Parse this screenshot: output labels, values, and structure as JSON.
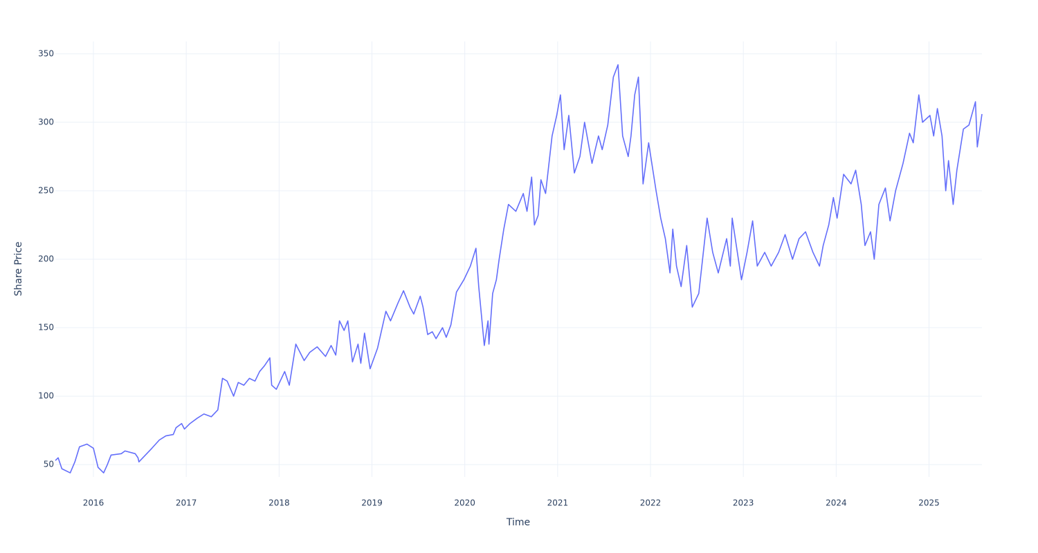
{
  "chart_data": {
    "type": "line",
    "x_label": "Time",
    "y_label": "Share Price",
    "x": [
      2015.59,
      2015.62,
      2015.66,
      2015.75,
      2015.8,
      2015.85,
      2015.93,
      2016.0,
      2016.05,
      2016.11,
      2016.15,
      2016.19,
      2016.3,
      2016.34,
      2016.45,
      2016.48,
      2016.49,
      2016.56,
      2016.63,
      2016.71,
      2016.78,
      2016.86,
      2016.89,
      2016.95,
      2016.98,
      2017.04,
      2017.12,
      2017.19,
      2017.27,
      2017.34,
      2017.39,
      2017.44,
      2017.51,
      2017.56,
      2017.62,
      2017.68,
      2017.74,
      2017.79,
      2017.84,
      2017.9,
      2017.92,
      2017.97,
      2018.06,
      2018.11,
      2018.18,
      2018.27,
      2018.33,
      2018.41,
      2018.5,
      2018.56,
      2018.61,
      2018.65,
      2018.7,
      2018.74,
      2018.79,
      2018.85,
      2018.88,
      2018.92,
      2018.98,
      2019.06,
      2019.11,
      2019.15,
      2019.2,
      2019.28,
      2019.34,
      2019.41,
      2019.45,
      2019.52,
      2019.55,
      2019.6,
      2019.65,
      2019.69,
      2019.76,
      2019.8,
      2019.85,
      2019.91,
      2019.99,
      2020.06,
      2020.12,
      2020.15,
      2020.21,
      2020.25,
      2020.26,
      2020.3,
      2020.34,
      2020.37,
      2020.42,
      2020.47,
      2020.55,
      2020.63,
      2020.67,
      2020.72,
      2020.75,
      2020.79,
      2020.82,
      2020.87,
      2020.94,
      2020.99,
      2021.03,
      2021.07,
      2021.12,
      2021.18,
      2021.24,
      2021.29,
      2021.37,
      2021.44,
      2021.48,
      2021.54,
      2021.6,
      2021.65,
      2021.7,
      2021.76,
      2021.79,
      2021.83,
      2021.87,
      2021.92,
      2021.98,
      2022.06,
      2022.11,
      2022.16,
      2022.21,
      2022.24,
      2022.28,
      2022.33,
      2022.39,
      2022.45,
      2022.52,
      2022.61,
      2022.67,
      2022.73,
      2022.82,
      2022.86,
      2022.88,
      2022.98,
      2023.04,
      2023.1,
      2023.15,
      2023.23,
      2023.3,
      2023.38,
      2023.45,
      2023.53,
      2023.6,
      2023.67,
      2023.75,
      2023.82,
      2023.86,
      2023.92,
      2023.97,
      2024.01,
      2024.08,
      2024.16,
      2024.21,
      2024.27,
      2024.31,
      2024.37,
      2024.41,
      2024.46,
      2024.53,
      2024.58,
      2024.64,
      2024.72,
      2024.79,
      2024.83,
      2024.89,
      2024.93,
      2025.01,
      2025.05,
      2025.09,
      2025.14,
      2025.18,
      2025.21,
      2025.26,
      2025.3,
      2025.37,
      2025.43,
      2025.5,
      2025.52,
      2025.57
    ],
    "values": [
      53,
      55,
      47,
      44,
      52,
      63,
      65,
      62,
      48,
      44,
      50,
      57,
      58,
      60,
      58,
      55,
      52,
      57,
      62,
      68,
      71,
      72,
      77,
      80,
      76,
      80,
      84,
      87,
      85,
      90,
      113,
      111,
      100,
      110,
      108,
      113,
      111,
      118,
      122,
      128,
      108,
      105,
      118,
      108,
      138,
      126,
      132,
      136,
      129,
      137,
      130,
      155,
      148,
      155,
      125,
      138,
      124,
      146,
      120,
      135,
      150,
      162,
      155,
      168,
      177,
      165,
      160,
      173,
      165,
      145,
      147,
      142,
      150,
      143,
      152,
      176,
      185,
      195,
      208,
      180,
      137,
      155,
      138,
      175,
      185,
      200,
      222,
      240,
      235,
      248,
      235,
      260,
      225,
      232,
      258,
      248,
      290,
      305,
      320,
      280,
      305,
      263,
      275,
      300,
      270,
      290,
      280,
      298,
      333,
      342,
      290,
      275,
      290,
      320,
      333,
      255,
      285,
      250,
      230,
      215,
      190,
      222,
      195,
      180,
      210,
      165,
      175,
      230,
      205,
      190,
      215,
      195,
      230,
      185,
      205,
      228,
      195,
      205,
      195,
      205,
      218,
      200,
      215,
      220,
      205,
      195,
      210,
      225,
      245,
      230,
      262,
      255,
      265,
      240,
      210,
      220,
      200,
      240,
      252,
      228,
      250,
      270,
      292,
      285,
      320,
      300,
      305,
      290,
      310,
      290,
      250,
      272,
      240,
      265,
      295,
      298,
      315,
      282,
      306
    ],
    "color": "#636efa",
    "xlim": [
      2015.59,
      2025.57
    ],
    "xticks": [
      2016,
      2017,
      2018,
      2019,
      2020,
      2021,
      2022,
      2023,
      2024,
      2025
    ],
    "ylim": [
      41,
      359
    ],
    "yticks": [
      50,
      100,
      150,
      200,
      250,
      300,
      350
    ],
    "grid": true
  }
}
